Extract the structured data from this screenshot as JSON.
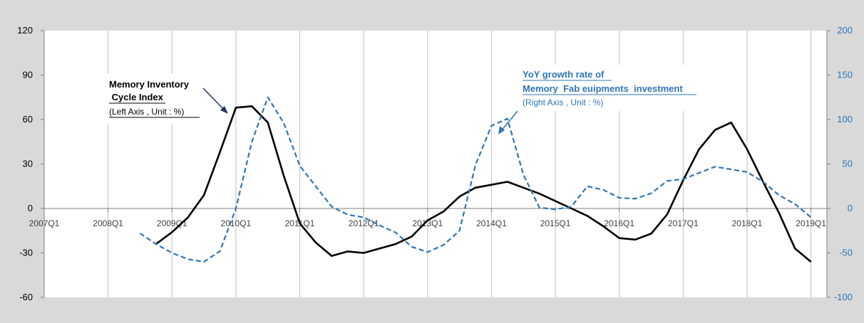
{
  "chart_data": {
    "type": "line",
    "title": "",
    "x_tick_labels": [
      "2007Q1",
      "2008Q1",
      "2009Q1",
      "2010Q1",
      "2011Q1",
      "2012Q1",
      "2013Q1",
      "2014Q1",
      "2015Q1",
      "2016Q1",
      "2017Q1",
      "2018Q1",
      "2019Q1"
    ],
    "x_range": [
      2007.0,
      2019.25
    ],
    "left_axis": {
      "ylim": [
        -60,
        120
      ],
      "ticks": [
        120,
        90,
        60,
        30,
        0,
        -30,
        -60
      ],
      "color": "#000000"
    },
    "right_axis": {
      "ylim": [
        -100,
        200
      ],
      "ticks": [
        200,
        150,
        100,
        50,
        0,
        -50,
        -100
      ],
      "color": "#2e75b6"
    },
    "grid": "vertical",
    "series": [
      {
        "name": "Memory Inventory Cycle Index",
        "axis": "left",
        "style": "solid",
        "color": "#000000",
        "points": [
          [
            2008.75,
            -24
          ],
          [
            2009.0,
            -16
          ],
          [
            2009.25,
            -6
          ],
          [
            2009.5,
            9
          ],
          [
            2009.75,
            38
          ],
          [
            2010.0,
            68
          ],
          [
            2010.25,
            69
          ],
          [
            2010.5,
            58
          ],
          [
            2010.75,
            22
          ],
          [
            2011.0,
            -10
          ],
          [
            2011.25,
            -23
          ],
          [
            2011.5,
            -32
          ],
          [
            2011.75,
            -29
          ],
          [
            2012.0,
            -30
          ],
          [
            2012.25,
            -27
          ],
          [
            2012.5,
            -24
          ],
          [
            2012.75,
            -19
          ],
          [
            2013.0,
            -8
          ],
          [
            2013.25,
            -2
          ],
          [
            2013.5,
            8
          ],
          [
            2013.75,
            14
          ],
          [
            2014.0,
            16
          ],
          [
            2014.25,
            18
          ],
          [
            2014.5,
            14
          ],
          [
            2014.75,
            10
          ],
          [
            2015.0,
            5
          ],
          [
            2015.25,
            0
          ],
          [
            2015.5,
            -5
          ],
          [
            2015.75,
            -12
          ],
          [
            2016.0,
            -20
          ],
          [
            2016.25,
            -21
          ],
          [
            2016.5,
            -17
          ],
          [
            2016.75,
            -4
          ],
          [
            2017.0,
            19
          ],
          [
            2017.25,
            40
          ],
          [
            2017.5,
            53
          ],
          [
            2017.75,
            58
          ],
          [
            2018.0,
            40
          ],
          [
            2018.25,
            18
          ],
          [
            2018.5,
            -3
          ],
          [
            2018.75,
            -27
          ],
          [
            2019.0,
            -36
          ]
        ],
        "label_lines": [
          "Memory Inventory",
          " Cycle Index",
          "(Left Axis , Unit : %)"
        ]
      },
      {
        "name": "YoY growth rate of Memory Fab euipments investment",
        "axis": "right",
        "style": "dashed",
        "color": "#2e75b6",
        "points": [
          [
            2008.5,
            -28
          ],
          [
            2008.75,
            -40
          ],
          [
            2009.0,
            -50
          ],
          [
            2009.25,
            -57
          ],
          [
            2009.5,
            -60
          ],
          [
            2009.75,
            -48
          ],
          [
            2010.0,
            0
          ],
          [
            2010.25,
            75
          ],
          [
            2010.5,
            125
          ],
          [
            2010.75,
            96
          ],
          [
            2011.0,
            48
          ],
          [
            2011.25,
            25
          ],
          [
            2011.5,
            2
          ],
          [
            2011.75,
            -7
          ],
          [
            2012.0,
            -10
          ],
          [
            2012.25,
            -19
          ],
          [
            2012.5,
            -27
          ],
          [
            2012.75,
            -43
          ],
          [
            2013.0,
            -49
          ],
          [
            2013.25,
            -41
          ],
          [
            2013.5,
            -25
          ],
          [
            2013.75,
            49
          ],
          [
            2014.0,
            93
          ],
          [
            2014.25,
            101
          ],
          [
            2014.5,
            38
          ],
          [
            2014.75,
            1
          ],
          [
            2015.0,
            -1
          ],
          [
            2015.25,
            2
          ],
          [
            2015.5,
            25
          ],
          [
            2015.75,
            21
          ],
          [
            2016.0,
            12
          ],
          [
            2016.25,
            11
          ],
          [
            2016.5,
            17
          ],
          [
            2016.75,
            31
          ],
          [
            2017.0,
            33
          ],
          [
            2017.25,
            40
          ],
          [
            2017.5,
            47
          ],
          [
            2017.75,
            44
          ],
          [
            2018.0,
            41
          ],
          [
            2018.25,
            30
          ],
          [
            2018.5,
            15
          ],
          [
            2018.75,
            5
          ],
          [
            2019.0,
            -10
          ]
        ],
        "label_lines": [
          "YoY growth rate of",
          "Memory  Fab euipments  investment",
          "(Right Axis , Unit : %)"
        ]
      }
    ]
  }
}
